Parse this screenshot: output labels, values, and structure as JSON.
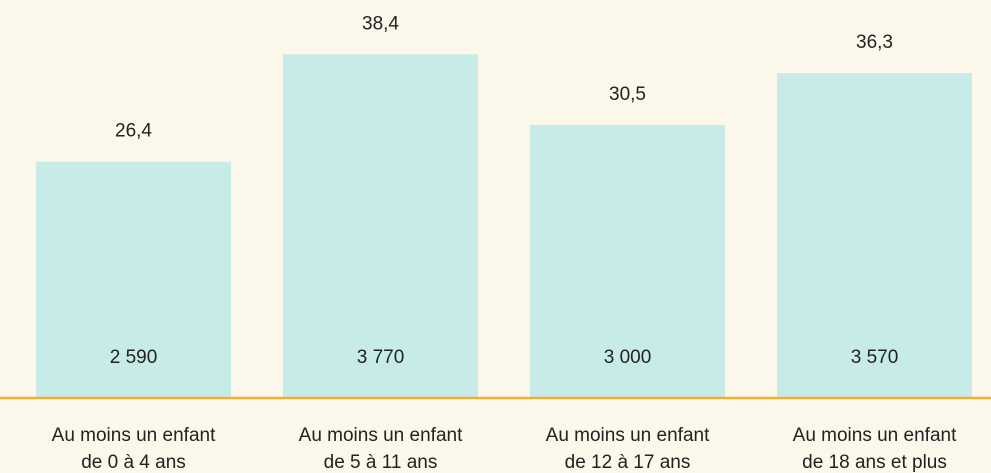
{
  "chart_data": {
    "type": "bar",
    "categories": [
      [
        "Au moins un enfant",
        "de 0 à 4 ans"
      ],
      [
        "Au moins un enfant",
        "de 5 à 11 ans"
      ],
      [
        "Au moins un enfant",
        "de 12 à 17 ans"
      ],
      [
        "Au moins un enfant",
        "de 18 ans et plus"
      ]
    ],
    "values": [
      26.4,
      38.4,
      30.5,
      36.3
    ],
    "value_labels": [
      "26,4",
      "38,4",
      "30,5",
      "36,3"
    ],
    "count_labels": [
      "2 590",
      "3 770",
      "3 000",
      "3 570"
    ],
    "color": "#c7ece8",
    "baseline_color": "#f0b030",
    "ylim": [
      0,
      40
    ]
  }
}
